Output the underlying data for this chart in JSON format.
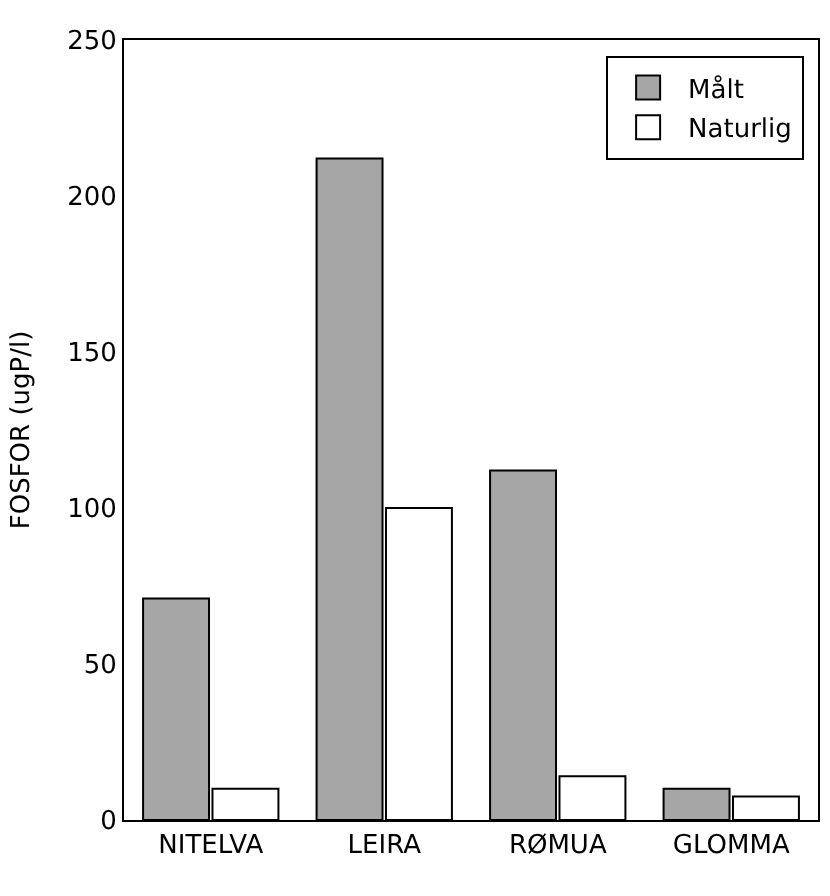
{
  "chart_data": {
    "type": "bar",
    "ylabel": "FOSFOR (ugP/l)",
    "categories": [
      "NITELVA",
      "LEIRA",
      "RØMUA",
      "GLOMMA"
    ],
    "series": [
      {
        "name": "Målt",
        "color": "#a6a6a6",
        "values": [
          71,
          212,
          112,
          10
        ]
      },
      {
        "name": "Naturlig",
        "color": "#ffffff",
        "values": [
          10,
          100,
          14,
          7.5
        ]
      }
    ],
    "ylim": [
      0,
      250
    ],
    "yticks": [
      0,
      50,
      100,
      150,
      200,
      250
    ],
    "grid": false,
    "legend": "top right"
  }
}
